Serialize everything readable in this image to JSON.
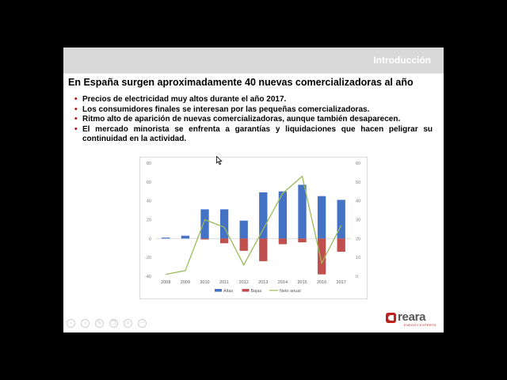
{
  "slide": {
    "section_title": "Introducción",
    "title": "En España surgen aproximadamente  40 nuevas comercializadoras al año",
    "bullets": [
      "Precios de electricidad muy altos durante el año 2017.",
      "Los consumidores finales se interesan por las pequeñas comercializadoras.",
      "Ritmo alto de aparición de nuevas comercializadoras, aunque también desaparecen.",
      "El mercado minorista se enfrenta a garantías y liquidaciones que hacen peligrar su continuidad en la actividad."
    ]
  },
  "chart_data": {
    "type": "bar",
    "categories": [
      "2008",
      "2009",
      "2010",
      "2011",
      "2012",
      "2013",
      "2014",
      "2015",
      "2016",
      "2017"
    ],
    "series": [
      {
        "name": "Altas",
        "type": "bar",
        "axis": "left",
        "color": "#4472c4",
        "values": [
          1,
          3,
          31,
          31,
          19,
          49,
          50,
          57,
          45,
          41
        ]
      },
      {
        "name": "Bajas",
        "type": "bar",
        "axis": "left",
        "color": "#c0504d",
        "values": [
          0,
          0,
          -1,
          -5,
          -13,
          -24,
          -6,
          -4,
          -38,
          -14
        ]
      },
      {
        "name": "Neto anual",
        "type": "line",
        "axis": "right",
        "color": "#9bbb59",
        "values": [
          1,
          3,
          30,
          26,
          6,
          25,
          44,
          53,
          7,
          27
        ]
      }
    ],
    "ylim": [
      -40,
      80
    ],
    "yticks": [
      80,
      60,
      40,
      20,
      0,
      -20,
      -40
    ],
    "y2lim": [
      0,
      60
    ],
    "y2ticks": [
      60,
      50,
      40,
      30,
      20,
      10,
      0
    ],
    "legend": "bottom",
    "grid": false
  },
  "nav": {
    "buttons": [
      "back-icon",
      "forward-icon",
      "pen-icon",
      "copy-icon",
      "zoom-icon",
      "more-icon"
    ]
  },
  "logo": {
    "word": "reara",
    "tagline": "ENERGY EXPERTS",
    "brand_color": "#c0201e"
  }
}
